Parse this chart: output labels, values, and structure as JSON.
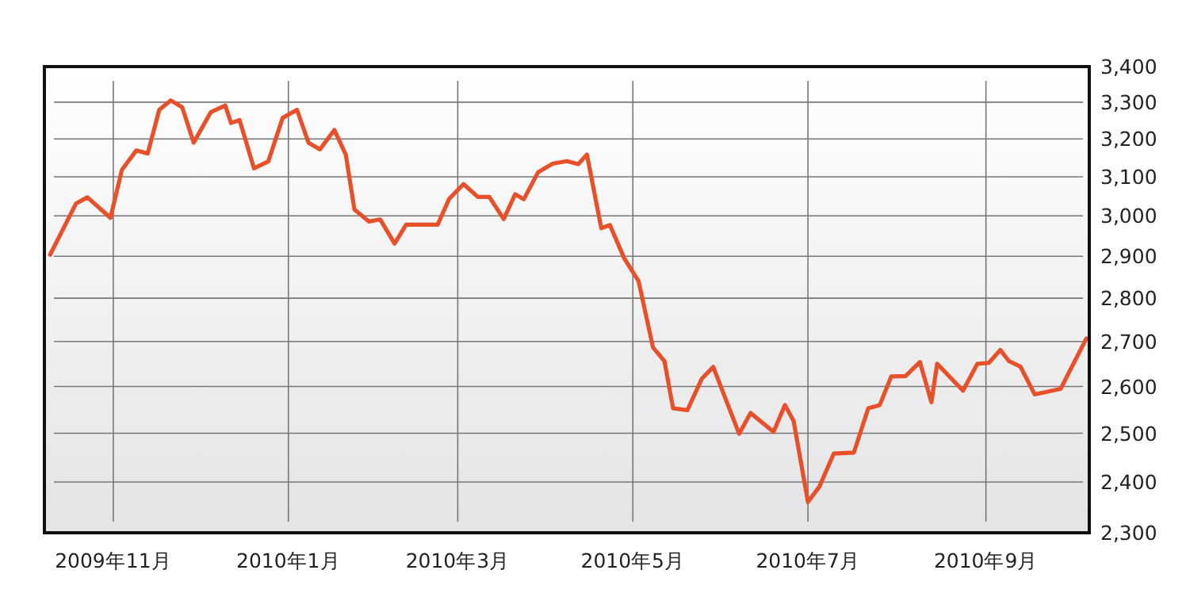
{
  "chart_data": {
    "type": "line",
    "log": true,
    "grid": true,
    "xlim": [
      "2009-10-08",
      "2010-10-07"
    ],
    "ylim": [
      2300,
      3400
    ],
    "xticks": [
      {
        "value": "2009-11-01",
        "label": "2009年11月"
      },
      {
        "value": "2010-01-01",
        "label": "2010年1月"
      },
      {
        "value": "2010-03-01",
        "label": "2010年3月"
      },
      {
        "value": "2010-05-01",
        "label": "2010年5月"
      },
      {
        "value": "2010-07-01",
        "label": "2010年7月"
      },
      {
        "value": "2010-09-01",
        "label": "2010年9月"
      }
    ],
    "yticks": [
      {
        "value": 2300,
        "label": "2,300"
      },
      {
        "value": 2400,
        "label": "2,400"
      },
      {
        "value": 2500,
        "label": "2,500"
      },
      {
        "value": 2600,
        "label": "2,600"
      },
      {
        "value": 2700,
        "label": "2,700"
      },
      {
        "value": 2800,
        "label": "2,800"
      },
      {
        "value": 2900,
        "label": "2,900"
      },
      {
        "value": 3000,
        "label": "3,000"
      },
      {
        "value": 3100,
        "label": "3,100"
      },
      {
        "value": 3200,
        "label": "3,200"
      },
      {
        "value": 3300,
        "label": "3,300"
      },
      {
        "value": 3400,
        "label": "3,400"
      }
    ],
    "x": [
      "2009-10-10",
      "2009-10-19",
      "2009-10-23",
      "2009-10-31",
      "2009-11-04",
      "2009-11-09",
      "2009-11-13",
      "2009-11-17",
      "2009-11-21",
      "2009-11-25",
      "2009-11-29",
      "2009-12-05",
      "2009-12-10",
      "2009-12-12",
      "2009-12-15",
      "2009-12-20",
      "2009-12-25",
      "2009-12-30",
      "2010-01-04",
      "2010-01-08",
      "2010-01-12",
      "2010-01-17",
      "2010-01-21",
      "2010-01-24",
      "2010-01-29",
      "2010-02-02",
      "2010-02-07",
      "2010-02-11",
      "2010-02-22",
      "2010-02-26",
      "2010-03-03",
      "2010-03-08",
      "2010-03-12",
      "2010-03-17",
      "2010-03-21",
      "2010-03-24",
      "2010-03-29",
      "2010-04-03",
      "2010-04-08",
      "2010-04-12",
      "2010-04-15",
      "2010-04-20",
      "2010-04-23",
      "2010-04-28",
      "2010-05-03",
      "2010-05-08",
      "2010-05-12",
      "2010-05-15",
      "2010-05-20",
      "2010-05-25",
      "2010-05-29",
      "2010-06-07",
      "2010-06-11",
      "2010-06-19",
      "2010-06-23",
      "2010-06-26",
      "2010-07-01",
      "2010-07-05",
      "2010-07-10",
      "2010-07-17",
      "2010-07-22",
      "2010-07-26",
      "2010-07-30",
      "2010-08-04",
      "2010-08-09",
      "2010-08-13",
      "2010-08-15",
      "2010-08-24",
      "2010-08-29",
      "2010-09-02",
      "2010-09-06",
      "2010-09-09",
      "2010-09-13",
      "2010-09-18",
      "2010-09-27",
      "2010-10-06"
    ],
    "series": [
      {
        "color": "#e8502a",
        "values": [
          2904,
          3031,
          3047,
          2995,
          3118,
          3169,
          3161,
          3279,
          3305,
          3286,
          3190,
          3273,
          3291,
          3243,
          3251,
          3122,
          3140,
          3257,
          3279,
          3190,
          3172,
          3224,
          3158,
          3016,
          2986,
          2991,
          2931,
          2978,
          2978,
          3043,
          3081,
          3048,
          3048,
          2992,
          3055,
          3042,
          3112,
          3134,
          3141,
          3133,
          3158,
          2969,
          2977,
          2895,
          2840,
          2687,
          2656,
          2553,
          2549,
          2617,
          2643,
          2499,
          2543,
          2503,
          2560,
          2526,
          2360,
          2391,
          2458,
          2460,
          2553,
          2560,
          2622,
          2623,
          2654,
          2566,
          2650,
          2591,
          2650,
          2652,
          2681,
          2656,
          2644,
          2583,
          2595,
          2707
        ]
      }
    ]
  }
}
